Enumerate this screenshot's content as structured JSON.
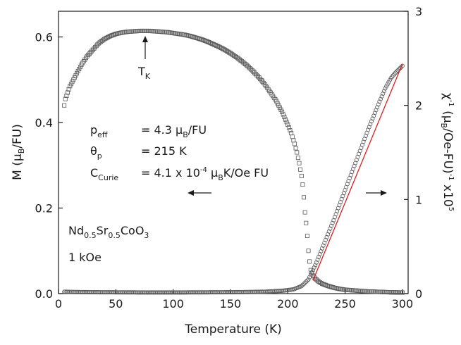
{
  "chart_data": {
    "type": "scatter",
    "xlabel": "Temperature (K)",
    "ylabel_left": {
      "main": "M (",
      "mu": "μ",
      "sub": "B",
      "rest": "/FU)"
    },
    "ylabel_right": {
      "chi": "χ",
      "sup1": "-1",
      "mid": " (μ",
      "sub": "B",
      "mid2": "/Oe-FU)",
      "sup2": "-1",
      "rest": " x10",
      "sup3": "5"
    },
    "xlim": [
      0,
      305
    ],
    "ylim_left": [
      0,
      0.66
    ],
    "ylim_right": [
      0,
      3
    ],
    "x_ticks": [
      "0",
      "50",
      "100",
      "150",
      "200",
      "250",
      "300"
    ],
    "y_ticks_left": [
      "0.0",
      "0.2",
      "0.4",
      "0.6"
    ],
    "y_ticks_right": [
      "0",
      "1",
      "2",
      "3"
    ],
    "grid": false,
    "series": [
      {
        "axis": "left",
        "marker": "square-open",
        "points": [
          [
            5,
            0.44
          ],
          [
            6,
            0.455
          ],
          [
            8,
            0.47
          ],
          [
            10,
            0.485
          ],
          [
            13,
            0.5
          ],
          [
            16,
            0.515
          ],
          [
            20,
            0.535
          ],
          [
            25,
            0.555
          ],
          [
            30,
            0.57
          ],
          [
            35,
            0.585
          ],
          [
            40,
            0.595
          ],
          [
            45,
            0.602
          ],
          [
            50,
            0.607
          ],
          [
            55,
            0.61
          ],
          [
            60,
            0.612
          ],
          [
            65,
            0.613
          ],
          [
            70,
            0.614
          ],
          [
            75,
            0.614
          ],
          [
            80,
            0.614
          ],
          [
            85,
            0.613
          ],
          [
            90,
            0.612
          ],
          [
            95,
            0.611
          ],
          [
            100,
            0.609
          ],
          [
            105,
            0.607
          ],
          [
            110,
            0.605
          ],
          [
            115,
            0.602
          ],
          [
            120,
            0.598
          ],
          [
            125,
            0.594
          ],
          [
            130,
            0.589
          ],
          [
            135,
            0.583
          ],
          [
            140,
            0.577
          ],
          [
            145,
            0.57
          ],
          [
            150,
            0.562
          ],
          [
            155,
            0.553
          ],
          [
            160,
            0.543
          ],
          [
            165,
            0.532
          ],
          [
            170,
            0.519
          ],
          [
            175,
            0.505
          ],
          [
            180,
            0.489
          ],
          [
            185,
            0.47
          ],
          [
            190,
            0.45
          ],
          [
            195,
            0.425
          ],
          [
            200,
            0.395
          ],
          [
            203,
            0.375
          ],
          [
            206,
            0.35
          ],
          [
            208,
            0.33
          ],
          [
            210,
            0.305
          ],
          [
            212,
            0.275
          ],
          [
            213,
            0.255
          ],
          [
            214,
            0.225
          ],
          [
            215,
            0.19
          ],
          [
            216,
            0.165
          ],
          [
            217,
            0.135
          ],
          [
            218,
            0.1
          ],
          [
            219,
            0.075
          ],
          [
            220,
            0.055
          ],
          [
            222,
            0.042
          ],
          [
            224,
            0.035
          ],
          [
            227,
            0.028
          ],
          [
            230,
            0.023
          ],
          [
            235,
            0.018
          ],
          [
            240,
            0.014
          ],
          [
            245,
            0.011
          ],
          [
            250,
            0.009
          ],
          [
            260,
            0.007
          ],
          [
            270,
            0.005
          ],
          [
            280,
            0.004
          ],
          [
            290,
            0.003
          ],
          [
            300,
            0.0025
          ]
        ]
      },
      {
        "axis": "right",
        "marker": "circle-open",
        "points": [
          [
            5,
            0.02
          ],
          [
            10,
            0.018
          ],
          [
            20,
            0.016
          ],
          [
            40,
            0.014
          ],
          [
            60,
            0.013
          ],
          [
            80,
            0.012
          ],
          [
            100,
            0.012
          ],
          [
            120,
            0.013
          ],
          [
            140,
            0.014
          ],
          [
            160,
            0.016
          ],
          [
            180,
            0.02
          ],
          [
            195,
            0.03
          ],
          [
            205,
            0.045
          ],
          [
            212,
            0.08
          ],
          [
            218,
            0.15
          ],
          [
            222,
            0.25
          ],
          [
            225,
            0.33
          ],
          [
            230,
            0.48
          ],
          [
            235,
            0.63
          ],
          [
            240,
            0.78
          ],
          [
            245,
            0.94
          ],
          [
            250,
            1.1
          ],
          [
            255,
            1.26
          ],
          [
            260,
            1.42
          ],
          [
            265,
            1.58
          ],
          [
            270,
            1.74
          ],
          [
            275,
            1.89
          ],
          [
            280,
            2.04
          ],
          [
            285,
            2.18
          ],
          [
            290,
            2.29
          ],
          [
            295,
            2.36
          ],
          [
            300,
            2.42
          ]
        ]
      }
    ],
    "fit_line": {
      "axis": "right",
      "color": "#d42020",
      "x": [
        222,
        300
      ],
      "y": [
        0.14,
        2.44
      ]
    },
    "annotations": {
      "tk": {
        "main": "T",
        "sub": "K"
      },
      "peff": {
        "label": "p",
        "sub": "eff",
        "value": "= 4.3 ",
        "mu": "μ",
        "mu_sub": "B",
        "rest": "/FU"
      },
      "theta": {
        "label": "θ",
        "sub": "p",
        "value": "= 215 K"
      },
      "curie": {
        "label": "C",
        "sub": "Curie",
        "value": "= 4.1 x 10",
        "sup": "-4",
        "mu": " μ",
        "mu_sub": "B",
        "rest": "K/Oe FU"
      },
      "compound": {
        "parts": [
          [
            "Nd",
            ""
          ],
          [
            "0.5",
            "sub"
          ],
          [
            "Sr",
            ""
          ],
          [
            "0.5",
            "sub"
          ],
          [
            "CoO",
            ""
          ],
          [
            "3",
            "sub"
          ]
        ]
      },
      "field": "1 kOe"
    },
    "colors": {
      "data": "#5a5a5a",
      "fit": "#d42020",
      "axis": "#1a1a1a"
    }
  }
}
